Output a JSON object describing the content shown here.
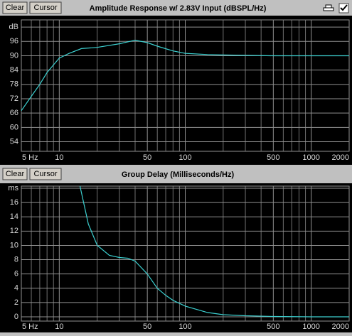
{
  "chart_data": [
    {
      "type": "line",
      "buttons": [
        "Clear",
        "Cursor"
      ],
      "title": "Amplitude Response w/ 2.83V Input (dBSPL/Hz)",
      "xscale": "log",
      "xlim": [
        5,
        2000
      ],
      "xticks": [
        {
          "value": 5,
          "label": "5 Hz"
        },
        10,
        50,
        100,
        500,
        1000,
        2000
      ],
      "xgrid": [
        6,
        7,
        8,
        9,
        20,
        30,
        40,
        60,
        70,
        80,
        90,
        200,
        300,
        400,
        600,
        700,
        800,
        900
      ],
      "ylim": [
        50,
        105
      ],
      "yticks": [
        54,
        60,
        66,
        72,
        78,
        84,
        90,
        96,
        {
          "value": 102,
          "label": "dB"
        }
      ],
      "color": "#3cd0d0",
      "x": [
        5,
        6,
        7,
        8,
        10,
        12,
        15,
        20,
        30,
        40,
        50,
        60,
        80,
        100,
        150,
        200,
        500,
        1000,
        2000
      ],
      "values": [
        67,
        73,
        78,
        83,
        89,
        91,
        93,
        93.5,
        95,
        96.5,
        95.5,
        94,
        92,
        91,
        90.5,
        90.3,
        90,
        90,
        90
      ]
    },
    {
      "type": "line",
      "buttons": [
        "Clear",
        "Cursor"
      ],
      "title": "Group Delay (Milliseconds/Hz)",
      "xscale": "log",
      "xlim": [
        5,
        2000
      ],
      "xticks": [
        {
          "value": 5,
          "label": "5 Hz"
        },
        10,
        50,
        100,
        500,
        1000,
        2000
      ],
      "xgrid": [
        6,
        7,
        8,
        9,
        20,
        30,
        40,
        60,
        70,
        80,
        90,
        200,
        300,
        400,
        600,
        700,
        800,
        900
      ],
      "ylim": [
        -0.6,
        18.3
      ],
      "yticks": [
        0,
        2,
        4,
        6,
        8,
        10,
        12,
        14,
        16,
        {
          "value": 18,
          "label": "ms"
        }
      ],
      "color": "#3cd0d0",
      "x": [
        14.6,
        17,
        20,
        25,
        30,
        35,
        40,
        50,
        60,
        70,
        80,
        100,
        150,
        200,
        300,
        500,
        1000,
        2000
      ],
      "values": [
        18.3,
        13,
        10,
        8.6,
        8.3,
        8.2,
        7.8,
        6,
        4,
        3,
        2.3,
        1.5,
        0.6,
        0.3,
        0.15,
        0.05,
        0,
        0
      ]
    }
  ]
}
